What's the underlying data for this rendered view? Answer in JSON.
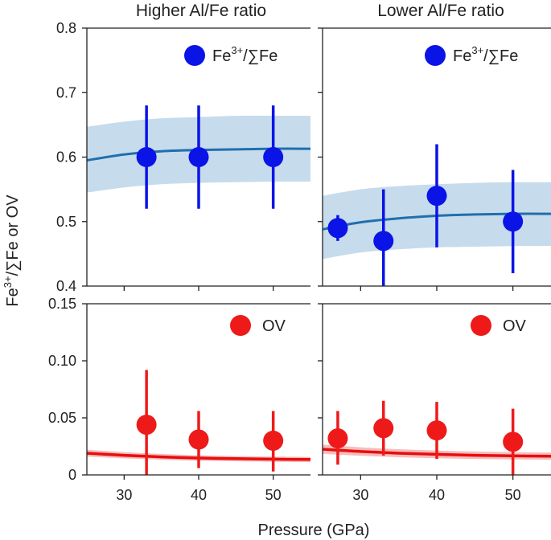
{
  "colors": {
    "fe_points": "#0a14e6",
    "fe_fit_line": "#1f6fae",
    "fe_band": "#c6dbec",
    "ov_points": "#ee1a1a",
    "ov_fit_line": "#e80d0d",
    "ov_band": "#f7bcbc",
    "axes": "#222222"
  },
  "figure": {
    "ylabel_main": "Fe",
    "ylabel_sup": "3+",
    "ylabel_rest": "/∑Fe or OV",
    "xlabel": "Pressure (GPa)"
  },
  "chart_data": [
    {
      "id": "fe-left",
      "type": "scatter",
      "title": "Higher Al/Fe ratio",
      "legend": {
        "main": "Fe",
        "sup": "3+",
        "rest": "/∑Fe",
        "color_key": "fe_points",
        "placement": "top-right"
      },
      "xlim": [
        25,
        55
      ],
      "ylim": [
        0.4,
        0.8
      ],
      "xticks": [
        30,
        40,
        50
      ],
      "xtick_labels": [
        "30",
        "40",
        "50"
      ],
      "yticks": [
        0.4,
        0.5,
        0.6,
        0.7,
        0.8
      ],
      "ytick_labels": [
        "0.4",
        "0.5",
        "0.6",
        "0.7",
        "0.8"
      ],
      "points": {
        "x": [
          33,
          40,
          50
        ],
        "y": [
          0.6,
          0.6,
          0.6
        ],
        "y_low": [
          0.52,
          0.52,
          0.52
        ],
        "y_high": [
          0.68,
          0.68,
          0.68
        ]
      },
      "fit": {
        "x": [
          25,
          30,
          35,
          40,
          45,
          50,
          55
        ],
        "y": [
          0.595,
          0.604,
          0.609,
          0.611,
          0.612,
          0.613,
          0.613
        ]
      },
      "band": {
        "x": [
          25,
          30,
          35,
          40,
          45,
          50,
          55
        ],
        "low": [
          0.545,
          0.553,
          0.558,
          0.56,
          0.561,
          0.562,
          0.562
        ],
        "high": [
          0.647,
          0.655,
          0.66,
          0.662,
          0.664,
          0.664,
          0.664
        ]
      }
    },
    {
      "id": "fe-right",
      "type": "scatter",
      "title": "Lower Al/Fe ratio",
      "legend": {
        "main": "Fe",
        "sup": "3+",
        "rest": "/∑Fe",
        "color_key": "fe_points",
        "placement": "top-right"
      },
      "xlim": [
        25,
        55
      ],
      "ylim": [
        0.4,
        0.8
      ],
      "xticks": [
        30,
        40,
        50
      ],
      "xtick_labels": [
        "30",
        "40",
        "50"
      ],
      "yticks": [
        0.4,
        0.5,
        0.6,
        0.7,
        0.8
      ],
      "ytick_labels": [],
      "points": {
        "x": [
          27,
          33,
          40,
          50
        ],
        "y": [
          0.49,
          0.47,
          0.54,
          0.5
        ],
        "y_low": [
          0.47,
          0.39,
          0.46,
          0.42
        ],
        "y_high": [
          0.51,
          0.55,
          0.62,
          0.58
        ]
      },
      "fit": {
        "x": [
          25,
          30,
          35,
          40,
          45,
          50,
          55
        ],
        "y": [
          0.488,
          0.499,
          0.505,
          0.509,
          0.511,
          0.512,
          0.512
        ]
      },
      "band": {
        "x": [
          25,
          30,
          35,
          40,
          45,
          50,
          55
        ],
        "low": [
          0.442,
          0.452,
          0.457,
          0.46,
          0.461,
          0.462,
          0.462
        ],
        "high": [
          0.54,
          0.55,
          0.555,
          0.558,
          0.56,
          0.561,
          0.561
        ]
      }
    },
    {
      "id": "ov-left",
      "type": "scatter",
      "title": "",
      "legend": {
        "main": "OV",
        "sup": "",
        "rest": "",
        "color_key": "ov_points",
        "placement": "top-right"
      },
      "xlim": [
        25,
        55
      ],
      "ylim": [
        0,
        0.15
      ],
      "xticks": [
        30,
        40,
        50
      ],
      "xtick_labels": [
        "30",
        "40",
        "50"
      ],
      "yticks": [
        0,
        0.05,
        0.1,
        0.15
      ],
      "ytick_labels": [
        "0",
        "0.05",
        "0.10",
        "0.15"
      ],
      "points": {
        "x": [
          33,
          40,
          50
        ],
        "y": [
          0.044,
          0.031,
          0.03
        ],
        "y_low": [
          0.0,
          0.006,
          0.003
        ],
        "y_high": [
          0.092,
          0.056,
          0.056
        ]
      },
      "fit": {
        "x": [
          25,
          30,
          35,
          40,
          45,
          50,
          55
        ],
        "y": [
          0.019,
          0.0172,
          0.0158,
          0.0148,
          0.0142,
          0.0138,
          0.0135
        ]
      },
      "band": {
        "x": [
          25,
          30,
          35,
          40,
          45,
          50,
          55
        ],
        "low": [
          0.016,
          0.0145,
          0.0133,
          0.0124,
          0.0119,
          0.0115,
          0.0112
        ],
        "high": [
          0.022,
          0.02,
          0.0184,
          0.0172,
          0.0165,
          0.0161,
          0.0158
        ]
      }
    },
    {
      "id": "ov-right",
      "type": "scatter",
      "title": "",
      "legend": {
        "main": "OV",
        "sup": "",
        "rest": "",
        "color_key": "ov_points",
        "placement": "top-right"
      },
      "xlim": [
        25,
        55
      ],
      "ylim": [
        0,
        0.15
      ],
      "xticks": [
        30,
        40,
        50
      ],
      "xtick_labels": [
        "30",
        "40",
        "50"
      ],
      "yticks": [
        0,
        0.05,
        0.1,
        0.15
      ],
      "ytick_labels": [],
      "points": {
        "x": [
          27,
          33,
          40,
          50
        ],
        "y": [
          0.032,
          0.041,
          0.039,
          0.029
        ],
        "y_low": [
          0.009,
          0.017,
          0.014,
          0.0
        ],
        "y_high": [
          0.056,
          0.065,
          0.064,
          0.058
        ]
      },
      "fit": {
        "x": [
          25,
          30,
          35,
          40,
          45,
          50,
          55
        ],
        "y": [
          0.0225,
          0.0205,
          0.019,
          0.018,
          0.0172,
          0.0167,
          0.0164
        ]
      },
      "band": {
        "x": [
          25,
          30,
          35,
          40,
          45,
          50,
          55
        ],
        "low": [
          0.0185,
          0.0168,
          0.0155,
          0.0146,
          0.014,
          0.0136,
          0.0133
        ],
        "high": [
          0.0265,
          0.0242,
          0.0225,
          0.0214,
          0.0205,
          0.0199,
          0.0196
        ]
      }
    }
  ]
}
